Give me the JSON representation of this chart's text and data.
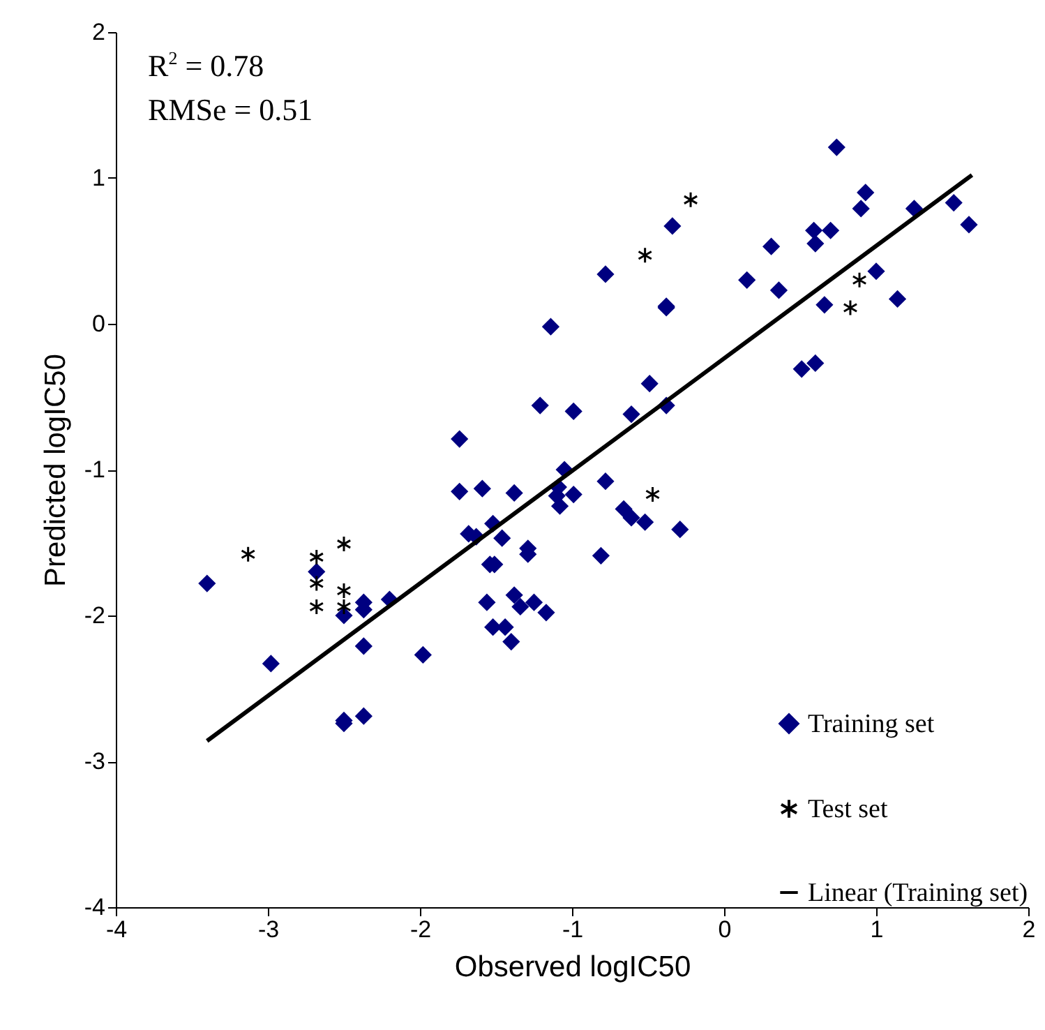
{
  "chart_data": {
    "type": "scatter",
    "xlabel": "Observed logIC50",
    "ylabel": "Predicted logIC50",
    "xlim": [
      -4,
      2
    ],
    "xticks": [
      -4,
      -3,
      -2,
      -1,
      0,
      1,
      2
    ],
    "ylim": [
      -4,
      2
    ],
    "yticks": [
      -4,
      -3,
      -2,
      -1,
      0,
      1,
      2
    ],
    "grid": false,
    "legend": "bottom right",
    "annotations": [
      "R$^{2}$ = 0.78",
      "RMSe = 0.51"
    ],
    "series": [
      {
        "name": "Training set",
        "color": "#000080",
        "marker": "diamond",
        "x": [
          -3.4,
          -2.98,
          -2.68,
          -2.37,
          -2.37,
          -2.2,
          -2.37,
          -1.98,
          -2.5,
          -2.5,
          -2.37,
          -2.5,
          -0.34,
          -0.78,
          0.15,
          -0.38,
          -0.38,
          -1.14,
          -0.49,
          -1.21,
          -0.99,
          -0.61,
          -0.38,
          -1.74,
          -1.05,
          -1.74,
          -1.59,
          -1.38,
          -1.09,
          -1.1,
          -1.08,
          -0.99,
          -0.78,
          -0.66,
          -0.61,
          -0.52,
          -0.29,
          -1.68,
          -1.63,
          -1.52,
          -1.46,
          -1.29,
          -1.29,
          -1.54,
          -1.51,
          -0.81,
          -1.38,
          -1.56,
          -1.34,
          -1.25,
          -1.17,
          -1.52,
          -1.44,
          -1.4,
          0.74,
          0.93,
          0.9,
          1.25,
          1.51,
          1.61,
          0.31,
          0.59,
          0.7,
          0.6,
          0.36,
          1.0,
          1.14,
          0.66,
          0.51,
          0.6
        ],
        "values": [
          -1.78,
          -2.33,
          -1.7,
          -1.91,
          -1.96,
          -1.89,
          -2.21,
          -2.27,
          -2.72,
          -2.0,
          -2.69,
          -2.74,
          0.67,
          0.34,
          0.3,
          0.12,
          0.11,
          -0.02,
          -0.41,
          -0.56,
          -0.6,
          -0.62,
          -0.56,
          -0.79,
          -1.0,
          -1.15,
          -1.13,
          -1.16,
          -1.12,
          -1.18,
          -1.25,
          -1.17,
          -1.08,
          -1.27,
          -1.33,
          -1.36,
          -1.41,
          -1.44,
          -1.46,
          -1.37,
          -1.47,
          -1.54,
          -1.58,
          -1.65,
          -1.65,
          -1.59,
          -1.86,
          -1.91,
          -1.94,
          -1.91,
          -1.98,
          -2.08,
          -2.08,
          -2.18,
          1.21,
          0.9,
          0.79,
          0.79,
          0.83,
          0.68,
          0.53,
          0.64,
          0.64,
          0.55,
          0.23,
          0.36,
          0.17,
          0.13,
          -0.31,
          -0.27
        ]
      },
      {
        "name": "Test set",
        "color": "#000000",
        "marker": "cross",
        "x": [
          -3.13,
          -2.68,
          -2.5,
          -2.68,
          -2.5,
          -2.68,
          -2.5,
          -0.52,
          -0.47,
          -0.22,
          0.89,
          0.83
        ],
        "values": [
          -1.58,
          -1.6,
          -1.51,
          -1.78,
          -1.83,
          -1.94,
          -1.94,
          0.47,
          -1.17,
          0.85,
          0.3,
          0.11
        ]
      },
      {
        "name": "Linear (Training set)",
        "type": "line",
        "color": "#000000",
        "marker": "none",
        "line_style": "solid",
        "x": [
          -3.4,
          1.63
        ],
        "values": [
          -2.86,
          1.02
        ]
      }
    ]
  }
}
